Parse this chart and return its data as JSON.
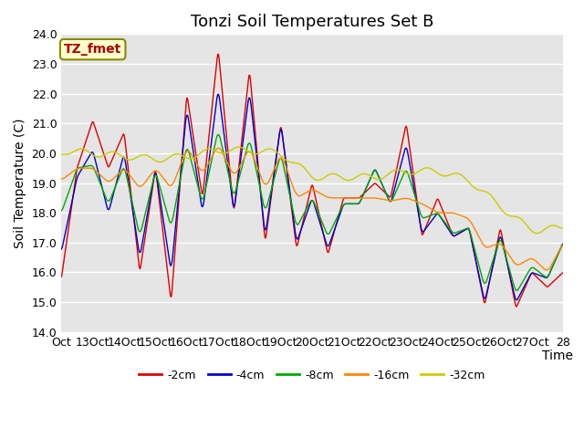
{
  "title": "Tonzi Soil Temperatures Set B",
  "xlabel": "Time",
  "ylabel": "Soil Temperature (C)",
  "ylim": [
    14.0,
    24.0
  ],
  "yticks": [
    14.0,
    15.0,
    16.0,
    17.0,
    18.0,
    19.0,
    20.0,
    21.0,
    22.0,
    23.0,
    24.0
  ],
  "xtick_labels": [
    "Oct",
    "13Oct",
    "14Oct",
    "15Oct",
    "16Oct",
    "17Oct",
    "18Oct",
    "19Oct",
    "20Oct",
    "21Oct",
    "22Oct",
    "23Oct",
    "24Oct",
    "25Oct",
    "26Oct",
    "27Oct",
    "28"
  ],
  "colors": {
    "-2cm": "#dd0000",
    "-4cm": "#0000cc",
    "-8cm": "#00aa00",
    "-16cm": "#ff8800",
    "-32cm": "#cccc00"
  },
  "legend_labels": [
    "-2cm",
    "-4cm",
    "-8cm",
    "-16cm",
    "-32cm"
  ],
  "annotation_text": "TZ_fmet",
  "annotation_box_color": "#ffffcc",
  "annotation_border_color": "#888800",
  "background_color": "#e5e5e5",
  "title_fontsize": 13,
  "axis_label_fontsize": 10,
  "tick_fontsize": 9,
  "n_days": 16,
  "pts_per_day": 48
}
